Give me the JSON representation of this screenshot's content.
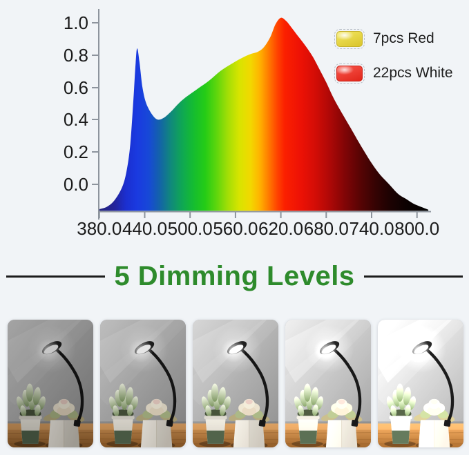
{
  "title": {
    "text": "5 Dimming Levels",
    "color": "#2e8b2c"
  },
  "chart": {
    "y_ticks": [
      "1.0",
      "0.8",
      "0.6",
      "0.4",
      "0.2",
      "0.0"
    ],
    "x_ticks": [
      "380.0",
      "440.0",
      "500.0",
      "560.0",
      "620.0",
      "680.0",
      "740.0",
      "800.0"
    ],
    "legend": [
      {
        "swatch": "yellow-led-chip",
        "swatch_color": "#e9d94c",
        "label": "7pcs Red"
      },
      {
        "swatch": "red-led-chip",
        "swatch_color": "#ef3b31",
        "label": "22pcs White"
      }
    ]
  },
  "chart_data": {
    "type": "area",
    "title": "",
    "xlabel": "",
    "ylabel": "",
    "xlim": [
      380,
      820
    ],
    "ylim": [
      -0.17,
      1.08
    ],
    "grid": false,
    "legend_position": "upper right",
    "legend": [
      "7pcs Red",
      "22pcs White"
    ],
    "note": "LED grow-light relative spectral power distribution; filled area colored as the visible spectrum; curve baseline sits on the x-axis slightly below the 0.0 gridline (about -0.165).",
    "baseline": -0.165,
    "series": [
      {
        "name": "relative spectral intensity",
        "x": [
          380,
          390,
          400,
          410,
          416,
          421,
          425,
          428,
          430,
          433,
          437,
          442,
          450,
          457,
          465,
          475,
          485,
          495,
          510,
          525,
          540,
          555,
          568,
          580,
          590,
          598,
          606,
          613,
          620,
          627,
          634,
          642,
          652,
          662,
          670,
          680,
          690,
          702,
          712,
          723,
          732,
          740,
          750,
          763,
          775,
          785,
          795,
          805,
          815
        ],
        "y": [
          -0.155,
          -0.14,
          -0.1,
          -0.02,
          0.08,
          0.25,
          0.52,
          0.75,
          0.84,
          0.76,
          0.6,
          0.5,
          0.43,
          0.4,
          0.41,
          0.45,
          0.5,
          0.54,
          0.59,
          0.64,
          0.7,
          0.745,
          0.78,
          0.805,
          0.82,
          0.85,
          0.91,
          0.99,
          1.03,
          1.01,
          0.97,
          0.92,
          0.86,
          0.79,
          0.72,
          0.63,
          0.53,
          0.43,
          0.35,
          0.26,
          0.19,
          0.13,
          0.065,
          0.0,
          -0.06,
          -0.09,
          -0.12,
          -0.14,
          -0.158
        ]
      }
    ],
    "peaks": [
      {
        "wavelength_nm": 430,
        "intensity": 0.84
      },
      {
        "wavelength_nm": 620,
        "intensity": 1.03
      }
    ],
    "valley": {
      "wavelength_nm": 457,
      "intensity": 0.4
    },
    "spectrum_gradient": [
      {
        "nm": 380,
        "color": "#23237d"
      },
      {
        "nm": 400,
        "color": "#23239a"
      },
      {
        "nm": 415,
        "color": "#1b2fd0"
      },
      {
        "nm": 430,
        "color": "#1a3ae0"
      },
      {
        "nm": 445,
        "color": "#1748d8"
      },
      {
        "nm": 460,
        "color": "#1363a8"
      },
      {
        "nm": 475,
        "color": "#108a7a"
      },
      {
        "nm": 490,
        "color": "#0fa852"
      },
      {
        "nm": 505,
        "color": "#15bd2f"
      },
      {
        "nm": 520,
        "color": "#25cc16"
      },
      {
        "nm": 535,
        "color": "#5ed60d"
      },
      {
        "nm": 550,
        "color": "#a3de06"
      },
      {
        "nm": 565,
        "color": "#d8e400"
      },
      {
        "nm": 580,
        "color": "#f2d800"
      },
      {
        "nm": 592,
        "color": "#ffb300"
      },
      {
        "nm": 604,
        "color": "#ff7a00"
      },
      {
        "nm": 615,
        "color": "#ff4400"
      },
      {
        "nm": 625,
        "color": "#fb2000"
      },
      {
        "nm": 645,
        "color": "#ee1205"
      },
      {
        "nm": 665,
        "color": "#d40d06"
      },
      {
        "nm": 685,
        "color": "#ad0807"
      },
      {
        "nm": 705,
        "color": "#800506"
      },
      {
        "nm": 725,
        "color": "#570404"
      },
      {
        "nm": 745,
        "color": "#350303"
      },
      {
        "nm": 765,
        "color": "#1c0202"
      },
      {
        "nm": 785,
        "color": "#0c0101"
      },
      {
        "nm": 815,
        "color": "#000000"
      }
    ]
  },
  "dimming": {
    "count": 5,
    "levels": [
      "level-1",
      "level-2",
      "level-3",
      "level-4",
      "level-5"
    ],
    "brightness": [
      0.78,
      0.9,
      1.02,
      1.14,
      1.26
    ]
  }
}
